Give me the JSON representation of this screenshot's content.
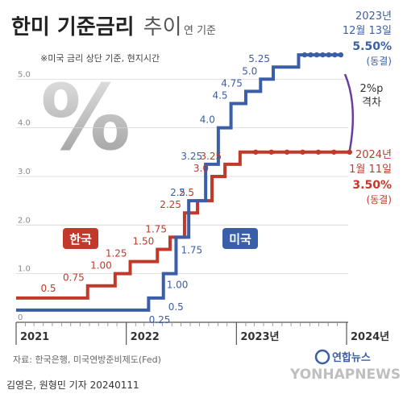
{
  "header": {
    "title_bold": "한미 기준금리",
    "title_light": "추이",
    "unit": "연 기준",
    "note": "※미국 금리 상단 기준, 현지시간"
  },
  "annotations": {
    "us_end": {
      "line1": "2023년",
      "line2": "12월 13일",
      "value": "5.50%",
      "status": "(동결)"
    },
    "kr_end": {
      "line1": "2024년",
      "line2": "1월 11일",
      "value": "3.50%",
      "status": "(동결)"
    },
    "gap": {
      "line1": "2%p",
      "line2": "격차"
    }
  },
  "legend": {
    "korea": "한국",
    "us": "미국"
  },
  "footer": {
    "source": "자료: 한국은행, 미국연방준비제도(Fed)",
    "logo_text": "연합뉴스",
    "byline": "김영은, 원형민 기자  20240111",
    "watermark": "YONHAPNEWS"
  },
  "colors": {
    "korea": "#c0392b",
    "us": "#3a5ea8",
    "gap_bracket": "#6a3d9a",
    "grid": "#d0d0d0"
  },
  "chart_data": {
    "type": "line",
    "step": true,
    "ylim": [
      0,
      5.8
    ],
    "yticks": [
      "0",
      "1.0",
      "2.0",
      "3.0",
      "4.0",
      "5.0"
    ],
    "xticks": [
      "2021",
      "2022",
      "2023년",
      "2024년"
    ],
    "series": [
      {
        "name": "한국",
        "color": "#c0392b",
        "x": [
          "2021-01-01",
          "2021-08-26",
          "2021-11-25",
          "2022-01-14",
          "2022-04-14",
          "2022-05-26",
          "2022-07-13",
          "2022-08-25",
          "2022-10-12",
          "2022-11-24",
          "2023-01-13",
          "2024-01-11"
        ],
        "values": [
          0.5,
          0.75,
          1.0,
          1.25,
          1.5,
          1.75,
          2.25,
          2.5,
          3.0,
          3.25,
          3.5,
          3.5
        ],
        "labels": [
          "0.5",
          "0.75",
          "1.00",
          "1.25",
          "1.50",
          "1.75",
          "2.25",
          "2.5",
          "3.0",
          "3.25"
        ]
      },
      {
        "name": "미국",
        "color": "#3a5ea8",
        "x": [
          "2021-01-01",
          "2022-03-16",
          "2022-05-04",
          "2022-06-15",
          "2022-07-27",
          "2022-09-21",
          "2022-11-02",
          "2022-12-14",
          "2023-02-01",
          "2023-03-22",
          "2023-05-03",
          "2023-07-26",
          "2023-12-13"
        ],
        "values": [
          0.25,
          0.5,
          1.0,
          1.75,
          2.5,
          3.25,
          4.0,
          4.5,
          4.75,
          5.0,
          5.25,
          5.5,
          5.5
        ],
        "labels": [
          "0.25",
          "0.5",
          "1.00",
          "1.75",
          "2.5",
          "3.25",
          "4.0",
          "4.5",
          "4.75",
          "5.0",
          "5.25"
        ]
      }
    ]
  }
}
